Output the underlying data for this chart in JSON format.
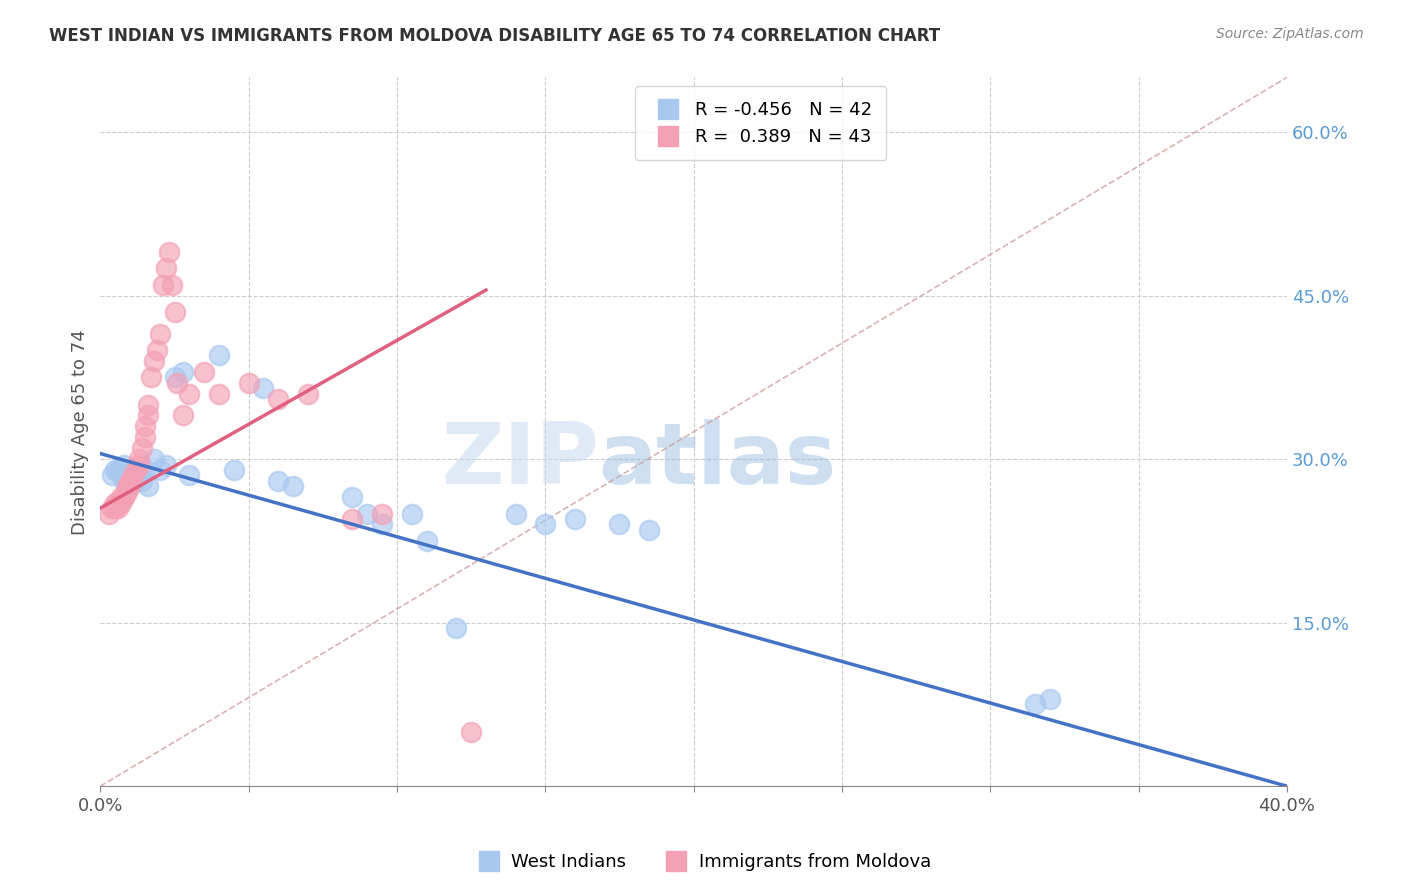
{
  "title": "WEST INDIAN VS IMMIGRANTS FROM MOLDOVA DISABILITY AGE 65 TO 74 CORRELATION CHART",
  "source": "Source: ZipAtlas.com",
  "ylabel": "Disability Age 65 to 74",
  "xlim": [
    0.0,
    0.4
  ],
  "ylim": [
    0.0,
    0.65
  ],
  "xticks": [
    0.0,
    0.05,
    0.1,
    0.15,
    0.2,
    0.25,
    0.3,
    0.35,
    0.4
  ],
  "yticks_right": [
    0.0,
    0.15,
    0.3,
    0.45,
    0.6
  ],
  "ytick_right_labels": [
    "",
    "15.0%",
    "30.0%",
    "45.0%",
    "60.0%"
  ],
  "legend_blue_R": "-0.456",
  "legend_blue_N": "42",
  "legend_pink_R": "0.389",
  "legend_pink_N": "43",
  "blue_color": "#A8C8F0",
  "pink_color": "#F4A0B5",
  "blue_line_color": "#4472C4",
  "pink_line_color": "#E06080",
  "ref_line_color": "#D0A0A0",
  "watermark_zip": "ZIP",
  "watermark_atlas": "atlas",
  "blue_points_x": [
    0.004,
    0.005,
    0.006,
    0.007,
    0.007,
    0.008,
    0.008,
    0.009,
    0.009,
    0.01,
    0.01,
    0.011,
    0.011,
    0.012,
    0.013,
    0.014,
    0.015,
    0.016,
    0.018,
    0.02,
    0.022,
    0.025,
    0.028,
    0.03,
    0.04,
    0.045,
    0.055,
    0.06,
    0.065,
    0.085,
    0.09,
    0.095,
    0.105,
    0.11,
    0.12,
    0.14,
    0.15,
    0.16,
    0.175,
    0.185,
    0.315,
    0.32
  ],
  "blue_points_y": [
    0.285,
    0.29,
    0.29,
    0.29,
    0.285,
    0.28,
    0.295,
    0.29,
    0.285,
    0.29,
    0.285,
    0.28,
    0.285,
    0.28,
    0.285,
    0.28,
    0.29,
    0.275,
    0.3,
    0.29,
    0.295,
    0.375,
    0.38,
    0.285,
    0.395,
    0.29,
    0.365,
    0.28,
    0.275,
    0.265,
    0.25,
    0.24,
    0.25,
    0.225,
    0.145,
    0.25,
    0.24,
    0.245,
    0.24,
    0.235,
    0.075,
    0.08
  ],
  "pink_points_x": [
    0.003,
    0.004,
    0.005,
    0.005,
    0.006,
    0.006,
    0.007,
    0.007,
    0.008,
    0.008,
    0.009,
    0.009,
    0.01,
    0.01,
    0.011,
    0.012,
    0.013,
    0.013,
    0.014,
    0.015,
    0.015,
    0.016,
    0.016,
    0.017,
    0.018,
    0.019,
    0.02,
    0.021,
    0.022,
    0.023,
    0.024,
    0.025,
    0.026,
    0.028,
    0.03,
    0.035,
    0.04,
    0.05,
    0.06,
    0.07,
    0.085,
    0.095,
    0.125
  ],
  "pink_points_y": [
    0.25,
    0.255,
    0.255,
    0.26,
    0.255,
    0.26,
    0.265,
    0.26,
    0.265,
    0.265,
    0.27,
    0.275,
    0.275,
    0.28,
    0.285,
    0.29,
    0.295,
    0.3,
    0.31,
    0.32,
    0.33,
    0.34,
    0.35,
    0.375,
    0.39,
    0.4,
    0.415,
    0.46,
    0.475,
    0.49,
    0.46,
    0.435,
    0.37,
    0.34,
    0.36,
    0.38,
    0.36,
    0.37,
    0.355,
    0.36,
    0.245,
    0.25,
    0.05
  ],
  "blue_line_x": [
    0.0,
    0.4
  ],
  "blue_line_y": [
    0.305,
    0.0
  ],
  "pink_line_x": [
    0.0,
    0.13
  ],
  "pink_line_y": [
    0.255,
    0.455
  ]
}
